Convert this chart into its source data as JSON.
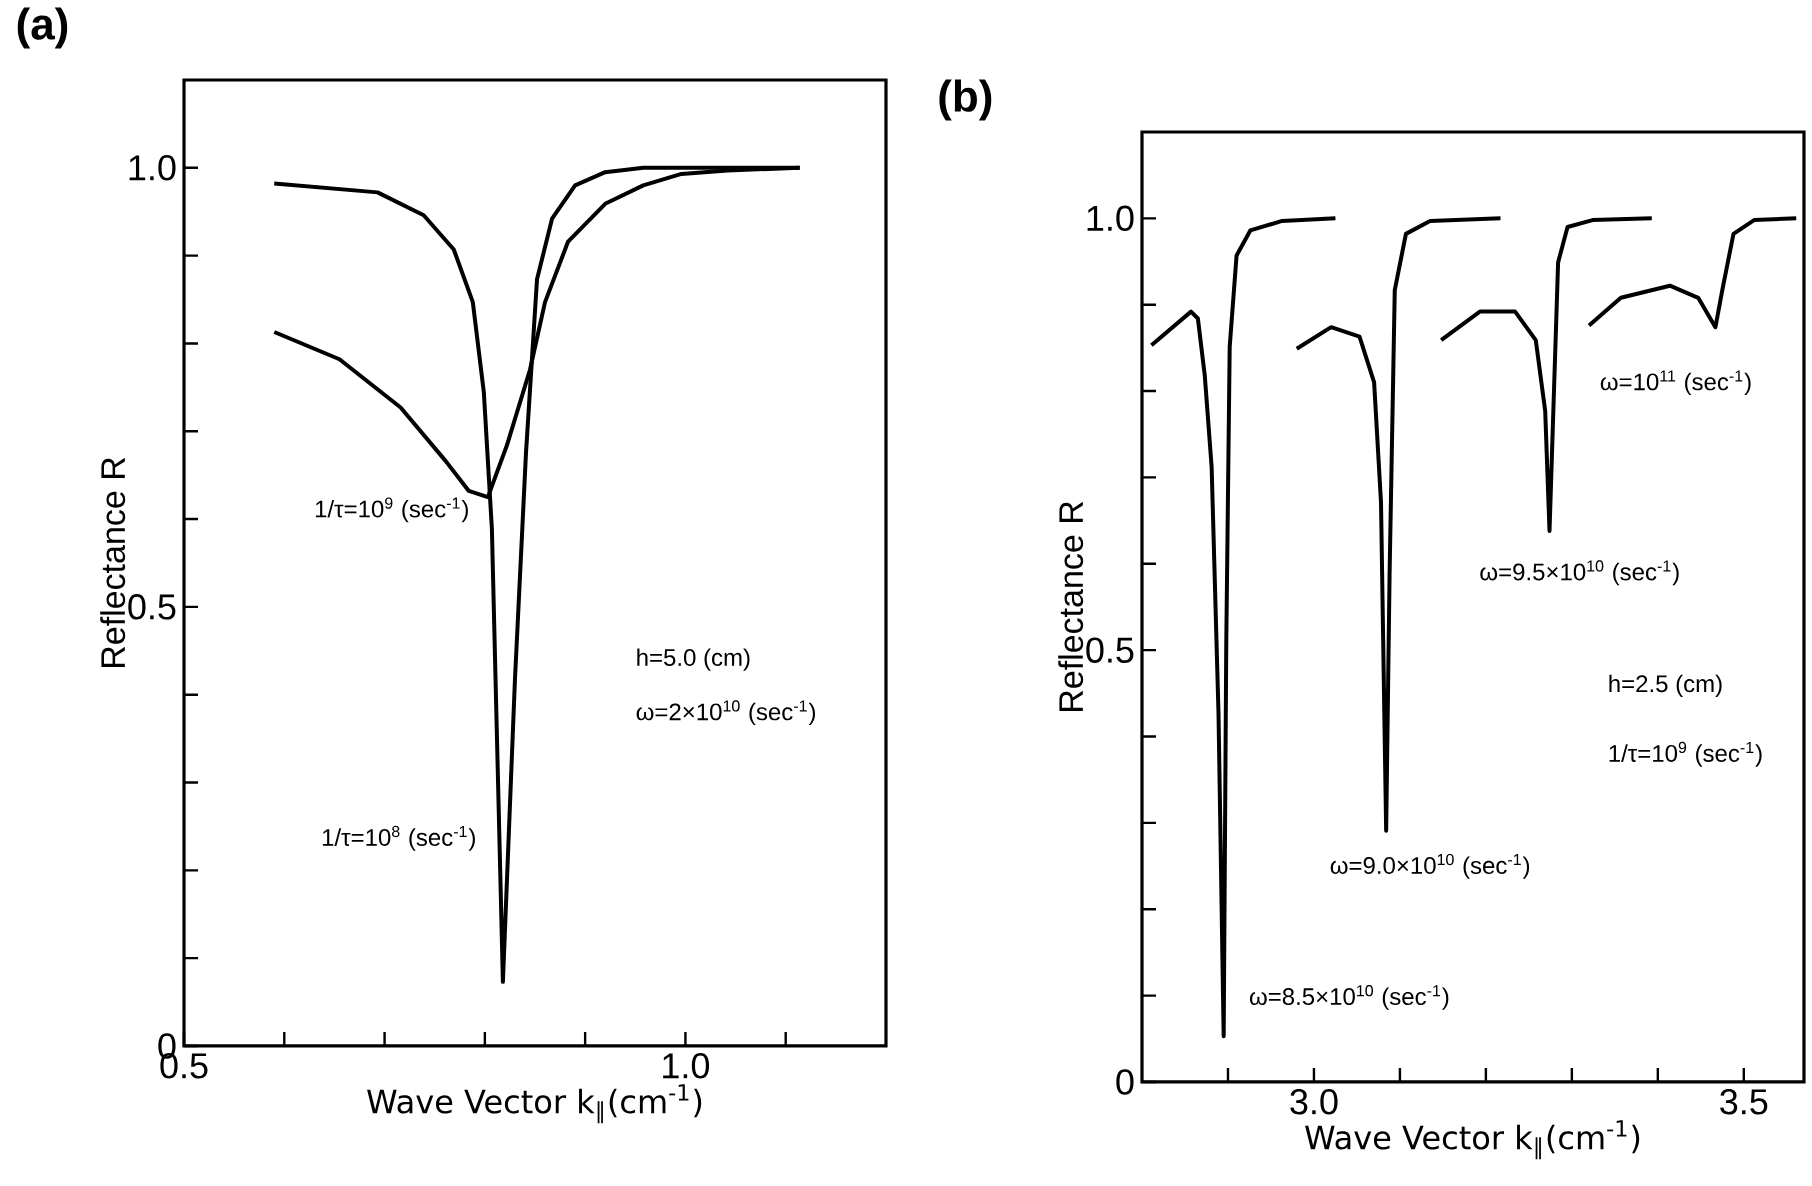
{
  "chart_data": [
    {
      "type": "line",
      "title": "(a)",
      "xlabel": "Wave Vector k$_{∥}$(cm$^{-1}$)",
      "ylabel": "Reflectance R",
      "xlim": [
        0.5,
        1.2
      ],
      "ylim": [
        0,
        1.1
      ],
      "xticks": [
        0.5,
        {
          "value": 0.6,
          "label": null
        },
        {
          "value": 0.7,
          "label": null
        },
        {
          "value": 0.8,
          "label": null
        },
        {
          "value": 0.9,
          "label": null
        },
        {
          "value": 1.0,
          "label": "1.0"
        },
        {
          "value": 1.1,
          "label": null
        }
      ],
      "yticks": [
        0,
        {
          "value": 0.1,
          "label": null
        },
        {
          "value": 0.2,
          "label": null
        },
        {
          "value": 0.3,
          "label": null
        },
        {
          "value": 0.4,
          "label": null
        },
        0.5,
        {
          "value": 0.6,
          "label": null
        },
        {
          "value": 0.7,
          "label": null
        },
        {
          "value": 0.8,
          "label": null
        },
        {
          "value": 0.9,
          "label": null
        },
        {
          "value": 1.0,
          "label": "1.0"
        }
      ],
      "line_style": "solid",
      "series": [
        {
          "color": "#000000",
          "x": [
            0.59,
            0.693,
            0.739,
            0.769,
            0.788,
            0.799,
            0.807,
            0.818,
            0.83,
            0.841,
            0.852,
            0.867,
            0.89,
            0.92,
            0.958,
            1.114
          ],
          "values": [
            0.982,
            0.972,
            0.946,
            0.907,
            0.847,
            0.744,
            0.589,
            0.073,
            0.417,
            0.675,
            0.873,
            0.942,
            0.98,
            0.995,
            1.0,
            1.0
          ]
        },
        {
          "color": "#000000",
          "x": [
            0.59,
            0.655,
            0.716,
            0.761,
            0.784,
            0.803,
            0.822,
            0.845,
            0.86,
            0.883,
            0.92,
            0.958,
            0.996,
            1.042,
            1.114
          ],
          "values": [
            0.813,
            0.782,
            0.727,
            0.666,
            0.632,
            0.625,
            0.684,
            0.77,
            0.847,
            0.916,
            0.959,
            0.98,
            0.993,
            0.997,
            1.0
          ]
        }
      ],
      "annotations": [
        "h=5.0 (cm)",
        "ω=2×10$^{10}$ (sec$^{-1}$)",
        "1/τ=10$^{9}$ (sec$^{-1}$)",
        "1/τ=10$^{8}$ (sec$^{-1}$)"
      ]
    },
    {
      "type": "line",
      "title": "(b)",
      "xlabel": "Wave Vector k$_{∥}$(cm$^{-1}$)",
      "ylabel": "Reflectance R",
      "xlim": [
        2.8,
        3.57
      ],
      "ylim": [
        0,
        1.1
      ],
      "xticks": [
        {
          "value": 2.9,
          "label": null
        },
        {
          "value": 3.0,
          "label": "3.0"
        },
        {
          "value": 3.1,
          "label": null
        },
        {
          "value": 3.2,
          "label": null
        },
        {
          "value": 3.3,
          "label": null
        },
        {
          "value": 3.4,
          "label": null
        },
        3.5
      ],
      "yticks": [
        0,
        {
          "value": 0.1,
          "label": null
        },
        {
          "value": 0.2,
          "label": null
        },
        {
          "value": 0.3,
          "label": null
        },
        {
          "value": 0.4,
          "label": null
        },
        0.5,
        {
          "value": 0.6,
          "label": null
        },
        {
          "value": 0.7,
          "label": null
        },
        {
          "value": 0.8,
          "label": null
        },
        {
          "value": 0.9,
          "label": null
        },
        {
          "value": 1.0,
          "label": "1.0"
        }
      ],
      "line_style": "solid",
      "series": [
        {
          "color": "#000000",
          "x": [
            2.811,
            2.857,
            2.865,
            2.873,
            2.881,
            2.889,
            2.895,
            2.898,
            2.902,
            2.91,
            2.926,
            2.963,
            3.025
          ],
          "values": [
            0.853,
            0.892,
            0.884,
            0.818,
            0.712,
            0.426,
            0.053,
            0.507,
            0.851,
            0.957,
            0.986,
            0.997,
            1.0
          ]
        },
        {
          "color": "#000000",
          "x": [
            2.98,
            3.02,
            3.053,
            3.07,
            3.078,
            3.084,
            3.088,
            3.094,
            3.107,
            3.135,
            3.217
          ],
          "values": [
            0.849,
            0.874,
            0.863,
            0.81,
            0.671,
            0.291,
            0.589,
            0.917,
            0.982,
            0.997,
            1.0
          ]
        },
        {
          "color": "#000000",
          "x": [
            3.148,
            3.193,
            3.234,
            3.258,
            3.269,
            3.274,
            3.279,
            3.284,
            3.295,
            3.324,
            3.393
          ],
          "values": [
            0.859,
            0.892,
            0.892,
            0.859,
            0.777,
            0.638,
            0.794,
            0.949,
            0.99,
            0.998,
            1.0
          ]
        },
        {
          "color": "#000000",
          "x": [
            3.32,
            3.357,
            3.414,
            3.447,
            3.467,
            3.475,
            3.488,
            3.512,
            3.561
          ],
          "values": [
            0.876,
            0.908,
            0.922,
            0.908,
            0.874,
            0.917,
            0.982,
            0.998,
            1.0
          ]
        }
      ],
      "annotations": [
        "h=2.5 (cm)",
        "1/τ=10$^{9}$ (sec$^{-1}$)",
        "ω=8.5×10$^{10}$ (sec$^{-1}$)",
        "ω=9.0×10$^{10}$ (sec$^{-1}$)",
        "ω=9.5×10$^{10}$ (sec$^{-1}$)",
        "ω=10$^{11}$ (sec$^{-1}$)"
      ]
    }
  ]
}
